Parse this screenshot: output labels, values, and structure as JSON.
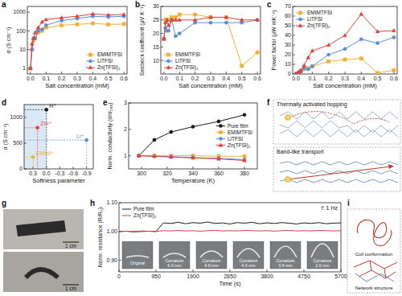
{
  "panel_labels": [
    "a",
    "b",
    "c",
    "d",
    "e",
    "f",
    "g",
    "h",
    "i"
  ],
  "chart_data": [
    {
      "type": "line",
      "xlabel": "Salt concentration (mM)",
      "ylabel": "σ (S cm⁻¹)",
      "log": "y",
      "x": [
        0,
        0.01,
        0.02,
        0.03,
        0.05,
        0.075,
        0.1,
        0.2,
        0.3,
        0.4,
        0.5,
        0.6
      ],
      "xlim": [
        -0.02,
        0.62
      ],
      "xticks": [
        {
          "value": 0,
          "label": "0.0"
        },
        0.1,
        0.2,
        0.3,
        0.4,
        0.5,
        0.6
      ],
      "ylim": [
        0.5,
        2000
      ],
      "yticks": [
        1,
        10,
        100,
        1000
      ],
      "legend": "lower right",
      "series": [
        {
          "name": "EMIMTFSI",
          "color": "#f2b134",
          "marker": "square",
          "values": [
            1,
            10,
            30,
            40,
            80,
            100,
            150,
            200,
            220,
            250,
            220,
            230
          ]
        },
        {
          "name": "LiTFSI",
          "color": "#5a8fd8",
          "marker": "circle",
          "values": [
            1,
            10,
            40,
            40,
            100,
            120,
            200,
            350,
            450,
            600,
            550,
            600
          ]
        },
        {
          "name": "Zn(TFSI)₂",
          "color": "#e0413a",
          "marker": "triangle",
          "values": [
            1,
            20,
            40,
            80,
            150,
            300,
            400,
            500,
            600,
            800,
            700,
            750
          ]
        }
      ]
    },
    {
      "type": "line",
      "xlabel": "Salt concentration (mM)",
      "ylabel": "Seebeck coefficient (μV K⁻¹)",
      "x": [
        0,
        0.01,
        0.02,
        0.03,
        0.05,
        0.075,
        0.1,
        0.2,
        0.3,
        0.4,
        0.5,
        0.6
      ],
      "xlim": [
        -0.02,
        0.62
      ],
      "xticks": [
        {
          "value": 0,
          "label": "0.0"
        },
        0.1,
        0.2,
        0.3,
        0.4,
        0.5,
        0.6
      ],
      "ylim": [
        5,
        30
      ],
      "yticks": [
        10,
        15,
        20,
        25,
        30
      ],
      "legend": "lower left",
      "series": [
        {
          "name": "EMIMTFSI",
          "color": "#f2b134",
          "marker": "square",
          "values": [
            18,
            25,
            25,
            25,
            26,
            26,
            27,
            27,
            26,
            26,
            8,
            13
          ]
        },
        {
          "name": "LiTFSI",
          "color": "#5a8fd8",
          "marker": "circle",
          "values": [
            18,
            22,
            21,
            21,
            25,
            19,
            20,
            24,
            24,
            24,
            24,
            25
          ]
        },
        {
          "name": "Zn(TFSI)₂",
          "color": "#e0413a",
          "marker": "triangle",
          "values": [
            18,
            24,
            25,
            23,
            25,
            25,
            25,
            25,
            26,
            26,
            25,
            25
          ]
        }
      ]
    },
    {
      "type": "line",
      "xlabel": "Salt concentration (mM)",
      "ylabel": "Power factor (μW mK⁻²)",
      "x": [
        0,
        0.01,
        0.02,
        0.03,
        0.05,
        0.075,
        0.1,
        0.2,
        0.3,
        0.4,
        0.5,
        0.6
      ],
      "xlim": [
        -0.02,
        0.62
      ],
      "xticks": [
        {
          "value": 0,
          "label": "0.0"
        },
        0.1,
        0.2,
        0.3,
        0.4,
        0.5,
        0.6
      ],
      "ylim": [
        0,
        70
      ],
      "yticks": [
        0,
        10,
        20,
        30,
        40,
        50,
        60,
        70
      ],
      "legend": "upper left",
      "series": [
        {
          "name": "EMIMTFSI",
          "color": "#f2b134",
          "marker": "square",
          "values": [
            0,
            0.6,
            1.5,
            2.5,
            5,
            6,
            8,
            13,
            15,
            16,
            1,
            4
          ]
        },
        {
          "name": "LiTFSI",
          "color": "#5a8fd8",
          "marker": "circle",
          "values": [
            0,
            0.5,
            2,
            2,
            6,
            5,
            8,
            20,
            26,
            36,
            32,
            38
          ]
        },
        {
          "name": "Zn(TFSI)₂",
          "color": "#e0413a",
          "marker": "triangle",
          "values": [
            0,
            1,
            2.5,
            4,
            9,
            17,
            24,
            30,
            40,
            62,
            44,
            45
          ]
        }
      ]
    },
    {
      "type": "scatter",
      "xlabel": "Softness parameter",
      "ylabel": "σ (S cm⁻¹)",
      "xlim": [
        0.5,
        -1.05
      ],
      "xticks": [
        0.3,
        {
          "value": 0,
          "label": "0.0"
        },
        -0.3,
        -0.6,
        -0.9
      ],
      "ylim": [
        0,
        1250
      ],
      "yticks": [
        0,
        500,
        1000
      ],
      "series": [
        {
          "name": "H⁺",
          "color": "#1a1a1a",
          "marker": "circle",
          "x": [
            0
          ],
          "values": [
            1150
          ]
        },
        {
          "name": "Zn²⁺",
          "color": "#e0413a",
          "marker": "circle",
          "x": [
            0.2
          ],
          "values": [
            800
          ]
        },
        {
          "name": "Li⁺",
          "color": "#5a8fd8",
          "marker": "circle",
          "x": [
            -0.9
          ],
          "values": [
            560
          ]
        },
        {
          "name": "EMIM⁺",
          "color": "#f2b134",
          "marker": "circle",
          "x": [
            0.3
          ],
          "values": [
            230
          ]
        }
      ]
    },
    {
      "type": "line",
      "xlabel": "Temperature (K)",
      "ylabel": "Norm. conductivity (σ/σ₂₉₈)",
      "x": [
        298,
        310,
        323,
        340,
        360,
        380
      ],
      "xlim": [
        290,
        390
      ],
      "xticks": [
        300,
        320,
        340,
        360,
        380
      ],
      "ylim": [
        0.5,
        3
      ],
      "yticks": [
        1,
        2,
        3
      ],
      "legend": "center right",
      "series": [
        {
          "name": "Pure film",
          "color": "#1a1a1a",
          "marker": "circle",
          "values": [
            1,
            1.6,
            1.9,
            2.1,
            2.3,
            2.55
          ]
        },
        {
          "name": "EMIMTFSI",
          "color": "#f2b134",
          "marker": "square",
          "values": [
            1,
            1,
            1,
            1,
            0.98,
            0.98
          ]
        },
        {
          "name": "LiTFSI",
          "color": "#5a8fd8",
          "marker": "circle",
          "values": [
            1,
            0.98,
            0.96,
            0.93,
            0.9,
            0.85
          ]
        },
        {
          "name": "Zn(TFSI)₂",
          "color": "#e0413a",
          "marker": "triangle",
          "values": [
            1,
            0.98,
            0.95,
            0.92,
            0.88,
            0.82
          ]
        }
      ]
    },
    {
      "type": "line",
      "xlabel": "Time (s)",
      "ylabel": "Norm. resistance (R/R₀)",
      "annotations": [
        "f: 1 Hz"
      ],
      "insets": [
        "Original",
        "Curvature 6.3 mm",
        "Curvature 4.9 mm",
        "Curvature 4.0 mm",
        "Curvature 3.6 mm",
        "Curvature 2.6 mm"
      ],
      "x": [
        0,
        190,
        380,
        570,
        760,
        950,
        1140,
        1330,
        1520,
        1710,
        1900,
        2090,
        2280,
        2470,
        2660,
        2850,
        3040,
        3230,
        3420,
        3610,
        3800,
        3990,
        4180,
        4370,
        4560,
        4750,
        4940,
        5130,
        5320,
        5510,
        5700
      ],
      "xlim": [
        0,
        5700
      ],
      "xticks": [
        0,
        950,
        1900,
        2850,
        3800,
        4750,
        5700
      ],
      "ylim": [
        0.86,
        1.1
      ],
      "yticks": [
        {
          "value": 0.9,
          "label": "0.90"
        },
        {
          "value": 1,
          "label": "1.00"
        },
        {
          "value": 1.1,
          "label": "1.10"
        }
      ],
      "legend": "upper left",
      "marker": "none",
      "series": [
        {
          "name": "Pure film",
          "color": "#1a1a1a",
          "values": [
            1,
            1.001,
            0.999,
            1,
            1.001,
            1,
            1.03,
            1.028,
            1.032,
            1.027,
            1.031,
            1.029,
            1.033,
            1.028,
            1.03,
            1.026,
            1.031,
            1.029,
            1.032,
            1.027,
            1.03,
            1.028,
            1.031,
            1.029,
            1.026,
            1.03,
            1.028,
            1.031,
            1.027,
            1.029,
            1.03
          ]
        },
        {
          "name": "Zn(TFSI)₂",
          "color": "#e0413a",
          "values": [
            1,
            1.001,
            1,
            1.002,
            1.001,
            1,
            1.003,
            1.002,
            1.004,
            1.002,
            1.003,
            1.001,
            1.003,
            1.004,
            1.002,
            1.003,
            1.002,
            1.004,
            1.003,
            1.002,
            1.003,
            1.001,
            1.003,
            1.004,
            1.002,
            1.003,
            1.002,
            1.004,
            1.003,
            1.002,
            1.003
          ]
        }
      ]
    }
  ],
  "diagram_f": {
    "texts": [
      "Thermally activated hopping",
      "Band-like transport"
    ]
  },
  "photo_g": {
    "scale_labels": [
      "1 cm",
      "1 cm"
    ]
  },
  "diagram_i": {
    "texts": [
      "Coil conformation",
      "Network structure"
    ]
  }
}
